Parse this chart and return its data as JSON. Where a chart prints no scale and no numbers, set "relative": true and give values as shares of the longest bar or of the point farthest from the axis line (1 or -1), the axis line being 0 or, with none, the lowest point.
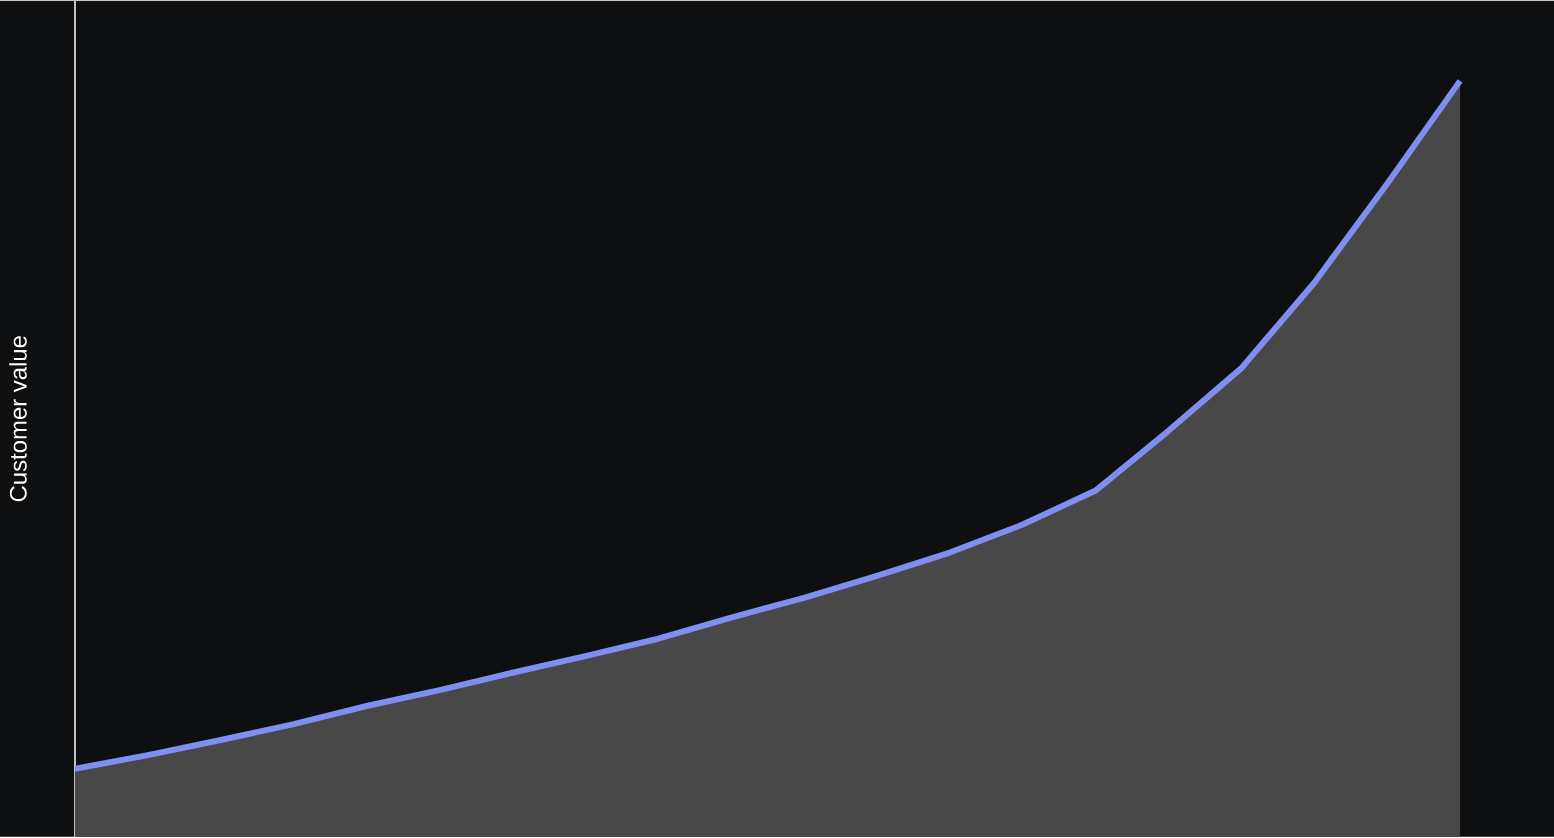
{
  "chart_data": {
    "type": "area",
    "relative": true,
    "ylabel": "Customer value",
    "color": "#7f8ef0",
    "categories": [
      null,
      null,
      null,
      null,
      null,
      null,
      null,
      null,
      null,
      null,
      null,
      null,
      null,
      null,
      null,
      null,
      null,
      null,
      null,
      null
    ],
    "values": [
      0.09,
      0.108,
      0.128,
      0.149,
      0.173,
      0.194,
      0.217,
      0.239,
      0.262,
      0.29,
      0.316,
      0.345,
      0.376,
      0.413,
      0.458,
      0.537,
      0.62,
      0.733,
      0.864,
      1.0
    ]
  }
}
